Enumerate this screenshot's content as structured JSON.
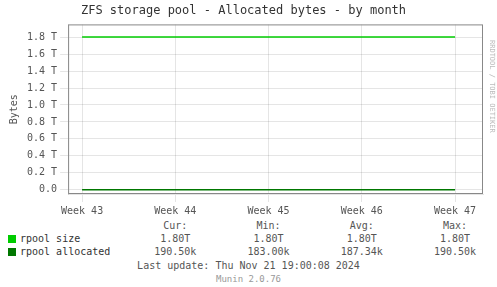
{
  "chart_data": {
    "type": "line",
    "title": "ZFS storage pool - Allocated bytes - by month",
    "y_label": "Bytes",
    "x": [
      0,
      4
    ],
    "series": [
      {
        "name": "rpool size",
        "color": "#00cc00",
        "values": [
          1.8,
          1.8
        ],
        "stats": [
          "1.80T",
          "1.80T",
          "1.80T",
          "1.80T"
        ]
      },
      {
        "name": "rpool allocated",
        "color": "#007700",
        "values": [
          1e-05,
          1e-05
        ],
        "stats": [
          "190.50k",
          "183.00k",
          "187.34k",
          "190.50k"
        ]
      }
    ],
    "stats_header": [
      "Cur:",
      "Min:",
      "Avg:",
      "Max:"
    ],
    "xlim": [
      -0.15,
      4.3
    ],
    "xticks": [
      {
        "value": 0,
        "label": "Week 43"
      },
      {
        "value": 1,
        "label": "Week 44"
      },
      {
        "value": 2,
        "label": "Week 45"
      },
      {
        "value": 3,
        "label": "Week 46"
      },
      {
        "value": 4,
        "label": "Week 47"
      }
    ],
    "ylim": [
      -0.05,
      1.95
    ],
    "yticks": [
      {
        "value": 0.0,
        "label": "0.0"
      },
      {
        "value": 0.2,
        "label": "0.2 T"
      },
      {
        "value": 0.4,
        "label": "0.4 T"
      },
      {
        "value": 0.6,
        "label": "0.6 T"
      },
      {
        "value": 0.8,
        "label": "0.8 T"
      },
      {
        "value": 1.0,
        "label": "1.0 T"
      },
      {
        "value": 1.2,
        "label": "1.2 T"
      },
      {
        "value": 1.4,
        "label": "1.4 T"
      },
      {
        "value": 1.6,
        "label": "1.6 T"
      },
      {
        "value": 1.8,
        "label": "1.8 T"
      }
    ],
    "grid": true,
    "notes": [
      "Last update: Thu Nov 21 19:00:08 2024",
      "Munin 2.0.76"
    ],
    "watermark": "RRDTOOL / TOBI OETIKER"
  }
}
